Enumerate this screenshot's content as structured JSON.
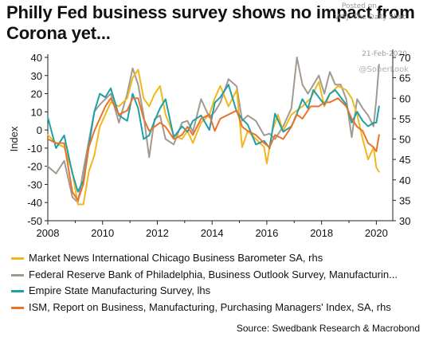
{
  "header": {
    "title_line1": "Philly Fed business survey shows no impact from",
    "title_line2": "Corona yet...",
    "posted_on": "Posted on",
    "publisher": "WSJ: The Daily Shot",
    "date": "21-Feb-2020",
    "handle": "@SoberLook"
  },
  "source": "Source: Swedbank Research & Macrobond",
  "colors": {
    "chicago": "#f0b81c",
    "philly": "#a39a8f",
    "empire": "#1f9fa6",
    "ism": "#e9732a",
    "axis": "#222222"
  },
  "chart_data": {
    "type": "line",
    "ylabel": "Index",
    "xlim": [
      2008.0,
      2020.6
    ],
    "xticks": [
      2008,
      2010,
      2012,
      2014,
      2016,
      2018,
      2020
    ],
    "xtick_labels": [
      "2008",
      "2010",
      "2012",
      "2014",
      "2016",
      "2018",
      "2020"
    ],
    "ylim_left": [
      -50,
      40
    ],
    "yticks_left": [
      -50,
      -40,
      -30,
      -20,
      -10,
      0,
      10,
      20,
      30,
      40
    ],
    "ylim_right": [
      30,
      70
    ],
    "yticks_right": [
      30,
      35,
      40,
      45,
      50,
      55,
      60,
      65,
      70
    ],
    "grid": false,
    "legend_position": "bottom",
    "series": [
      {
        "key": "chicago",
        "name": "Market News International Chicago Business Barometer SA, rhs",
        "axis": "right",
        "x": [
          2008.0,
          2008.3,
          2008.6,
          2008.9,
          2009.1,
          2009.3,
          2009.5,
          2009.7,
          2009.9,
          2010.1,
          2010.3,
          2010.6,
          2010.9,
          2011.1,
          2011.3,
          2011.5,
          2011.7,
          2011.9,
          2012.1,
          2012.3,
          2012.6,
          2012.9,
          2013.1,
          2013.3,
          2013.6,
          2013.9,
          2014.1,
          2014.3,
          2014.6,
          2014.9,
          2015.1,
          2015.3,
          2015.6,
          2015.9,
          2016.0,
          2016.2,
          2016.4,
          2016.6,
          2016.9,
          2017.1,
          2017.3,
          2017.6,
          2017.9,
          2018.1,
          2018.3,
          2018.6,
          2018.9,
          2019.1,
          2019.3,
          2019.5,
          2019.7,
          2019.9,
          2020.0,
          2020.1
        ],
        "values": [
          51,
          49,
          48,
          42,
          34,
          34,
          42,
          46,
          53,
          56,
          59,
          58,
          60,
          65,
          67,
          60,
          58,
          61,
          63,
          56,
          51,
          50,
          52,
          49,
          54,
          56,
          60,
          63,
          58,
          62,
          48,
          52,
          50,
          48,
          44,
          52,
          56,
          52,
          56,
          57,
          58,
          60,
          64,
          58,
          61,
          63,
          62,
          60,
          56,
          50,
          45,
          48,
          43,
          42
        ]
      },
      {
        "key": "philly",
        "name": "Federal Reserve Bank of Philadelphia, Business Outlook Survey, Manufacturin...",
        "axis": "left",
        "x": [
          2008.0,
          2008.3,
          2008.6,
          2008.9,
          2009.1,
          2009.3,
          2009.5,
          2009.7,
          2009.9,
          2010.1,
          2010.3,
          2010.6,
          2010.9,
          2011.1,
          2011.3,
          2011.5,
          2011.7,
          2011.9,
          2012.1,
          2012.3,
          2012.6,
          2012.9,
          2013.1,
          2013.3,
          2013.6,
          2013.9,
          2014.1,
          2014.3,
          2014.6,
          2014.9,
          2015.1,
          2015.3,
          2015.6,
          2015.9,
          2016.1,
          2016.3,
          2016.6,
          2016.9,
          2017.1,
          2017.3,
          2017.5,
          2017.7,
          2017.9,
          2018.1,
          2018.3,
          2018.5,
          2018.7,
          2018.9,
          2019.1,
          2019.3,
          2019.5,
          2019.7,
          2019.9,
          2020.0,
          2020.1
        ],
        "values": [
          -20,
          -24,
          -17,
          -37,
          -40,
          -22,
          -6,
          10,
          14,
          17,
          20,
          4,
          20,
          34,
          25,
          8,
          -15,
          6,
          8,
          -5,
          -8,
          4,
          5,
          -1,
          17,
          7,
          10,
          15,
          28,
          24,
          5,
          8,
          5,
          -3,
          -2,
          -5,
          2,
          12,
          40,
          25,
          20,
          25,
          30,
          20,
          32,
          25,
          25,
          17,
          -4,
          17,
          12,
          8,
          2,
          17,
          36
        ]
      },
      {
        "key": "empire",
        "name": "Empire State Manufacturing Survey, lhs",
        "axis": "left",
        "x": [
          2008.0,
          2008.3,
          2008.6,
          2008.9,
          2009.1,
          2009.3,
          2009.5,
          2009.7,
          2009.9,
          2010.1,
          2010.3,
          2010.6,
          2010.9,
          2011.1,
          2011.3,
          2011.5,
          2011.7,
          2011.9,
          2012.1,
          2012.3,
          2012.6,
          2012.9,
          2013.1,
          2013.3,
          2013.6,
          2013.9,
          2014.1,
          2014.3,
          2014.6,
          2014.9,
          2015.1,
          2015.3,
          2015.6,
          2015.9,
          2016.1,
          2016.3,
          2016.6,
          2016.9,
          2017.1,
          2017.3,
          2017.5,
          2017.7,
          2017.9,
          2018.1,
          2018.3,
          2018.5,
          2018.7,
          2018.9,
          2019.1,
          2019.3,
          2019.5,
          2019.7,
          2019.9,
          2020.0,
          2020.1
        ],
        "values": [
          7,
          -10,
          -3,
          -24,
          -34,
          -28,
          -9,
          10,
          20,
          18,
          23,
          8,
          5,
          20,
          12,
          -5,
          -3,
          5,
          12,
          17,
          -4,
          2,
          -1,
          5,
          8,
          0,
          15,
          18,
          25,
          10,
          6,
          3,
          -8,
          -6,
          -10,
          9,
          -1,
          2,
          9,
          17,
          12,
          22,
          18,
          14,
          20,
          22,
          18,
          14,
          4,
          10,
          5,
          2,
          4,
          4,
          13
        ]
      },
      {
        "key": "ism",
        "name": "ISM, Report on Business, Manufacturing, Purchasing Managers' Index, SA, rhs",
        "axis": "right",
        "x": [
          2008.0,
          2008.3,
          2008.6,
          2008.9,
          2009.1,
          2009.3,
          2009.5,
          2009.7,
          2009.9,
          2010.1,
          2010.3,
          2010.6,
          2010.9,
          2011.1,
          2011.3,
          2011.5,
          2011.7,
          2011.9,
          2012.1,
          2012.3,
          2012.6,
          2012.9,
          2013.1,
          2013.3,
          2013.6,
          2013.9,
          2014.1,
          2014.3,
          2014.6,
          2014.9,
          2015.1,
          2015.3,
          2015.6,
          2015.9,
          2016.1,
          2016.3,
          2016.6,
          2016.9,
          2017.1,
          2017.3,
          2017.6,
          2017.9,
          2018.1,
          2018.3,
          2018.6,
          2018.9,
          2019.1,
          2019.3,
          2019.5,
          2019.7,
          2019.9,
          2020.0,
          2020.1
        ],
        "values": [
          50,
          49,
          49,
          37,
          35,
          39,
          48,
          52,
          55,
          58,
          60,
          56,
          57,
          60,
          60,
          55,
          52,
          53,
          54,
          53,
          50,
          51,
          53,
          51,
          55,
          56,
          52,
          55,
          56,
          57,
          53,
          52,
          51,
          49,
          48,
          51,
          50,
          53,
          56,
          55,
          58,
          58,
          59,
          59,
          60,
          58,
          55,
          53,
          52,
          49,
          48,
          47,
          51
        ]
      }
    ]
  }
}
